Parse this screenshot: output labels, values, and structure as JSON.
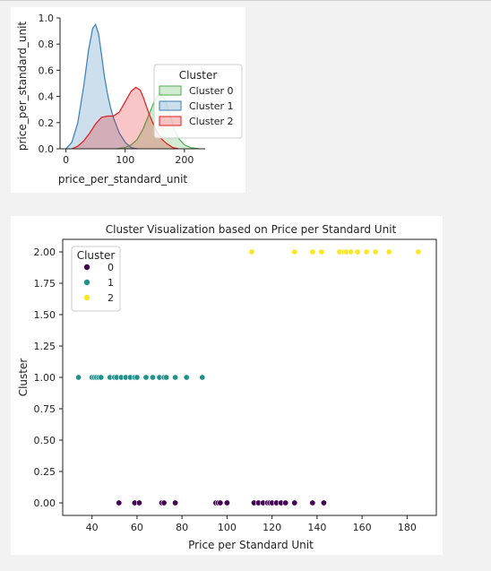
{
  "chart_data": [
    {
      "type": "area",
      "title": "",
      "xlabel": "price_per_standard_unit",
      "ylabel": "price_per_standard_unit",
      "xlim": [
        -10,
        235
      ],
      "ylim": [
        0,
        1.0
      ],
      "xticks": [
        0,
        100,
        200
      ],
      "yticks": [
        0.0,
        0.2,
        0.4,
        0.6,
        0.8,
        1.0
      ],
      "ytick_labels": [
        "0.0",
        "0.2",
        "0.4",
        "0.6",
        "0.8",
        "1.0"
      ],
      "grid": false,
      "legend": {
        "title": "Cluster",
        "placement": "right",
        "entries": [
          "Cluster 0",
          "Cluster 1",
          "Cluster 2"
        ]
      },
      "series": [
        {
          "name": "Cluster 0",
          "color": "#4daf4a",
          "x": [
            85,
            100,
            110,
            120,
            130,
            140,
            148,
            155,
            160,
            168,
            175,
            182,
            190,
            200,
            210,
            225
          ],
          "y": [
            0.0,
            0.01,
            0.03,
            0.07,
            0.15,
            0.26,
            0.35,
            0.41,
            0.42,
            0.37,
            0.27,
            0.16,
            0.08,
            0.03,
            0.01,
            0.0
          ]
        },
        {
          "name": "Cluster 1",
          "color": "#377eb8",
          "x": [
            0,
            10,
            20,
            30,
            38,
            45,
            50,
            55,
            60,
            65,
            70,
            75,
            80,
            85,
            90,
            100,
            110,
            120
          ],
          "y": [
            0.0,
            0.05,
            0.2,
            0.48,
            0.75,
            0.92,
            0.95,
            0.88,
            0.72,
            0.55,
            0.42,
            0.32,
            0.24,
            0.18,
            0.12,
            0.05,
            0.01,
            0.0
          ]
        },
        {
          "name": "Cluster 2",
          "color": "#e41a1c",
          "x": [
            10,
            20,
            30,
            40,
            50,
            60,
            70,
            80,
            90,
            100,
            110,
            118,
            125,
            130,
            140,
            150,
            160,
            170,
            180,
            190
          ],
          "y": [
            0.0,
            0.02,
            0.06,
            0.12,
            0.19,
            0.24,
            0.25,
            0.25,
            0.28,
            0.36,
            0.44,
            0.47,
            0.45,
            0.4,
            0.27,
            0.16,
            0.08,
            0.04,
            0.01,
            0.0
          ]
        }
      ]
    },
    {
      "type": "scatter",
      "title": "Cluster Visualization based on Price per Standard Unit",
      "xlabel": "Price per Standard Unit",
      "ylabel": "Cluster",
      "xlim": [
        27,
        193
      ],
      "ylim": [
        -0.1,
        2.1
      ],
      "xticks": [
        40,
        60,
        80,
        100,
        120,
        140,
        160,
        180
      ],
      "yticks": [
        0.0,
        0.25,
        0.5,
        0.75,
        1.0,
        1.25,
        1.5,
        1.75,
        2.0
      ],
      "ytick_labels": [
        "0.00",
        "0.25",
        "0.50",
        "0.75",
        "1.00",
        "1.25",
        "1.50",
        "1.75",
        "2.00"
      ],
      "grid": false,
      "legend": {
        "title": "Cluster",
        "placement": "top-left",
        "entries": [
          "0",
          "1",
          "2"
        ]
      },
      "series": [
        {
          "name": "0",
          "color": "#440154",
          "y": 0,
          "x": [
            52,
            59,
            61,
            71,
            72,
            77,
            95,
            96,
            97,
            100,
            112,
            114,
            116,
            118,
            119,
            120,
            122,
            124,
            126,
            130,
            138,
            143
          ]
        },
        {
          "name": "1",
          "color": "#21918c",
          "y": 1,
          "x": [
            34,
            40,
            41,
            42,
            43,
            44,
            48,
            50,
            51,
            53,
            55,
            57,
            59,
            60,
            64,
            67,
            70,
            72,
            73,
            77,
            82,
            89
          ]
        },
        {
          "name": "2",
          "color": "#fde725",
          "y": 2,
          "x": [
            111,
            130,
            138,
            142,
            150,
            152,
            153,
            155,
            158,
            162,
            166,
            172,
            185
          ]
        }
      ]
    }
  ]
}
